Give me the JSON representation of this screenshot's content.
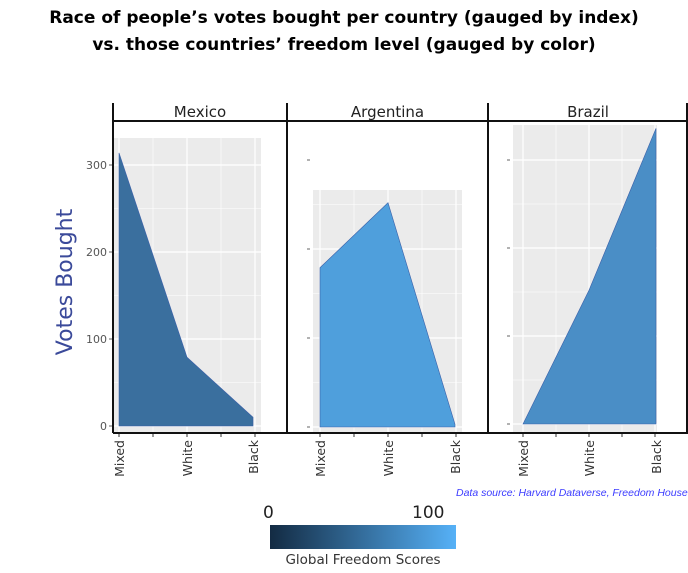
{
  "chart_data": {
    "type": "area",
    "title": "Race of people’s  votes bought per country (gauged by index)",
    "subtitle": "vs. those countries’ freedom level (gauged by color)",
    "ylabel": "Votes Bought",
    "categories": [
      "Mixed",
      "White",
      "Black"
    ],
    "yticks": [
      "0",
      "100",
      "200",
      "300"
    ],
    "ylim": [
      0,
      330
    ],
    "grid": true,
    "panels": [
      {
        "name": "Mexico",
        "values": [
          314,
          79,
          10
        ],
        "fill": "#3a6f9e"
      },
      {
        "name": "Argentina",
        "values": [
          179,
          252,
          3
        ],
        "fill": "#4f9fdc"
      },
      {
        "name": "Brazil",
        "values": [
          0,
          152,
          336
        ],
        "fill": "#4a8ec6"
      }
    ],
    "legend": {
      "title": "Global Freedom Scores",
      "min_label": "0",
      "max_label": "100",
      "low_color": "#132b43",
      "high_color": "#56b1f7",
      "placement": "bottom"
    },
    "source": "Data source: Harvard Dataverse, Freedom House"
  }
}
